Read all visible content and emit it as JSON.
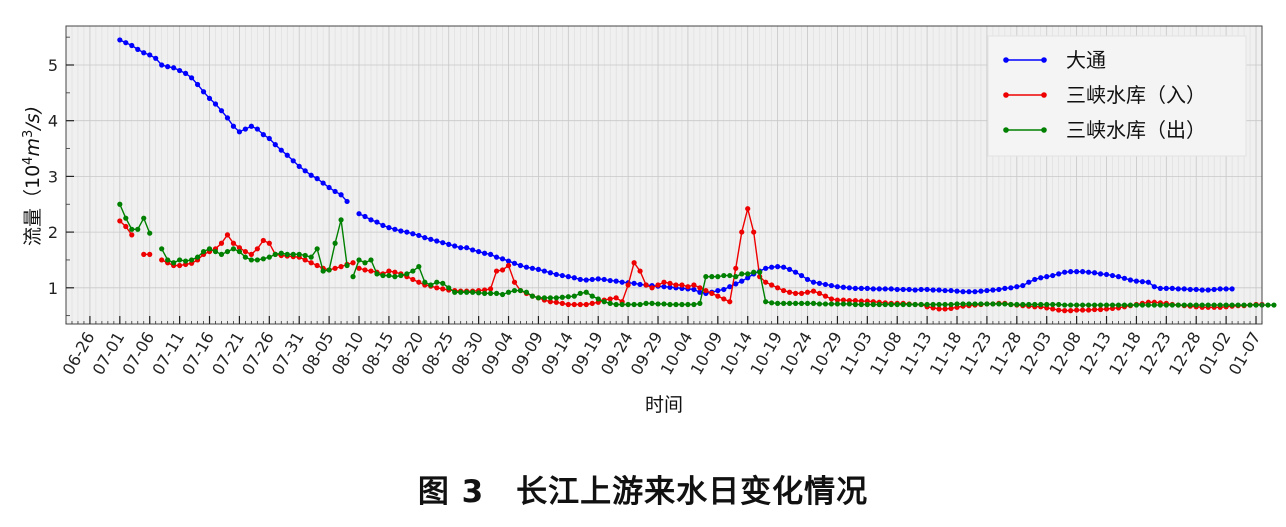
{
  "figure_caption": "图 3　长江上游来水日变化情况",
  "chart_data": {
    "type": "line",
    "title": "",
    "xlabel": "时间",
    "ylabel_text": "流量（10",
    "ylabel_unit": "m",
    "ylabel_rest": "/s)",
    "ylabel_sup": "4",
    "ylabel_sup2": "3",
    "ylim": [
      0.35,
      5.7
    ],
    "yticks": [
      "1",
      "2",
      "3",
      "4",
      "5"
    ],
    "ytick_values": [
      1,
      2,
      3,
      4,
      5
    ],
    "x_start": "2021-06-22",
    "x_end": "2022-01-08",
    "xtick_labels": [
      "06-26",
      "07-01",
      "07-06",
      "07-11",
      "07-16",
      "07-21",
      "07-26",
      "07-31",
      "08-05",
      "08-10",
      "08-15",
      "08-20",
      "08-25",
      "08-30",
      "09-04",
      "09-09",
      "09-14",
      "09-19",
      "09-24",
      "09-29",
      "10-04",
      "10-09",
      "10-14",
      "10-19",
      "10-24",
      "10-29",
      "11-03",
      "11-08",
      "11-13",
      "11-18",
      "11-23",
      "11-28",
      "12-03",
      "12-08",
      "12-13",
      "12-18",
      "12-23",
      "12-28",
      "01-02",
      "01-07"
    ],
    "grid": true,
    "legend_position": "top-right",
    "series": [
      {
        "name": "大通",
        "color": "#0000ff",
        "segments": [
          {
            "start": "2021-07-01",
            "values": [
              5.45,
              5.4,
              5.35,
              5.28,
              5.22,
              5.18,
              5.12,
              5.0,
              4.97,
              4.95,
              4.9,
              4.85,
              4.77,
              4.65,
              4.52,
              4.4,
              4.3,
              4.18,
              4.05,
              3.9,
              3.8,
              3.85,
              3.9,
              3.85,
              3.75,
              3.68,
              3.57,
              3.47,
              3.38,
              3.28,
              3.18,
              3.1,
              3.02,
              2.96,
              2.88,
              2.8,
              2.73,
              2.67,
              2.55
            ]
          },
          {
            "start": "2021-08-10",
            "values": [
              2.33,
              2.28,
              2.22,
              2.18,
              2.12,
              2.08,
              2.05,
              2.02,
              2.0,
              1.97,
              1.94,
              1.9,
              1.87,
              1.84,
              1.81,
              1.78,
              1.75,
              1.72,
              1.72,
              1.68,
              1.65,
              1.62,
              1.6,
              1.55,
              1.52,
              1.48,
              1.44,
              1.4,
              1.37,
              1.35,
              1.33,
              1.3,
              1.27,
              1.24,
              1.22,
              1.2,
              1.18,
              1.15,
              1.14,
              1.15,
              1.16,
              1.15,
              1.13,
              1.12,
              1.1,
              1.09,
              1.08,
              1.06,
              1.05,
              1.04,
              1.03,
              1.02,
              1.01,
              1.0,
              0.99,
              0.98,
              0.97,
              0.92,
              0.9,
              0.92,
              0.95,
              0.97,
              1.02,
              1.07,
              1.12,
              1.18,
              1.25,
              1.3,
              1.35,
              1.37,
              1.38,
              1.37,
              1.33,
              1.28,
              1.22,
              1.15,
              1.1,
              1.08,
              1.06,
              1.04,
              1.02,
              1.01,
              1.0,
              0.99,
              0.99,
              0.99,
              0.98,
              0.98,
              0.98,
              0.98,
              0.97,
              0.97,
              0.97,
              0.96,
              0.97,
              0.97,
              0.96,
              0.96,
              0.95,
              0.95,
              0.94,
              0.93,
              0.93,
              0.93,
              0.94,
              0.95,
              0.96,
              0.97,
              0.99,
              1.0,
              1.02,
              1.04,
              1.1,
              1.15,
              1.18,
              1.2,
              1.22,
              1.25,
              1.28,
              1.29,
              1.29,
              1.29,
              1.28,
              1.27,
              1.25,
              1.24,
              1.22,
              1.2,
              1.17,
              1.14,
              1.12,
              1.11,
              1.1,
              1.02,
              0.99,
              0.99,
              0.99,
              0.98,
              0.98,
              0.97,
              0.97,
              0.96,
              0.96,
              0.97,
              0.98,
              0.98,
              0.98
            ]
          }
        ]
      },
      {
        "name": "三峡水库（入）",
        "color": "#ee0000",
        "segments": [
          {
            "start": "2021-07-01",
            "values": [
              2.2,
              2.1,
              1.95
            ]
          },
          {
            "start": "2021-07-05",
            "values": [
              1.6,
              1.6
            ]
          },
          {
            "start": "2021-07-08",
            "values": [
              1.5,
              1.45,
              1.4,
              1.4,
              1.42,
              1.44,
              1.5,
              1.6,
              1.65,
              1.7,
              1.8,
              1.95,
              1.8,
              1.72,
              1.65,
              1.6,
              1.7,
              1.85,
              1.8,
              1.6,
              1.58,
              1.57,
              1.56,
              1.55,
              1.5,
              1.45,
              1.4,
              1.35,
              1.32,
              1.35,
              1.38,
              1.42,
              1.45
            ]
          },
          {
            "start": "2021-08-10",
            "values": [
              1.35,
              1.32,
              1.3,
              1.28,
              1.25,
              1.3,
              1.28,
              1.25,
              1.2,
              1.15,
              1.1,
              1.05,
              1.03,
              1.0,
              0.98,
              0.96,
              0.95,
              0.94,
              0.94,
              0.94,
              0.95,
              0.96,
              0.98,
              1.3,
              1.32,
              1.4,
              1.1,
              0.95,
              0.9,
              0.85,
              0.82,
              0.78,
              0.75,
              0.74,
              0.72,
              0.7,
              0.7,
              0.7,
              0.7,
              0.72,
              0.74,
              0.78,
              0.8,
              0.82,
              0.75,
              1.05,
              1.45,
              1.3,
              1.05,
              1.0,
              1.05,
              1.1,
              1.08,
              1.05,
              1.05,
              1.02,
              1.05,
              1.0,
              0.95,
              0.9,
              0.85,
              0.8,
              0.75,
              1.35,
              2.0,
              2.42,
              2.0,
              1.2,
              1.1,
              1.05,
              1.0,
              0.95,
              0.92,
              0.9,
              0.9,
              0.92,
              0.94,
              0.9,
              0.85,
              0.8,
              0.78,
              0.78,
              0.77,
              0.77,
              0.76,
              0.76,
              0.75,
              0.74,
              0.73,
              0.72,
              0.72,
              0.72,
              0.71,
              0.7,
              0.7,
              0.66,
              0.64,
              0.62,
              0.62,
              0.63,
              0.65,
              0.67,
              0.68,
              0.69,
              0.7,
              0.71,
              0.71,
              0.72,
              0.72,
              0.7,
              0.69,
              0.68,
              0.67,
              0.66,
              0.66,
              0.64,
              0.62,
              0.6,
              0.59,
              0.59,
              0.6,
              0.6,
              0.6,
              0.61,
              0.61,
              0.62,
              0.63,
              0.64,
              0.66,
              0.68,
              0.7,
              0.72,
              0.74,
              0.74,
              0.73,
              0.72,
              0.7,
              0.69,
              0.68,
              0.67,
              0.66,
              0.65,
              0.65,
              0.65,
              0.65,
              0.66,
              0.67,
              0.68,
              0.68,
              0.69,
              0.7,
              0.7
            ]
          }
        ]
      },
      {
        "name": "三峡水库（出）",
        "color": "#008000",
        "segments": [
          {
            "start": "2021-07-01",
            "values": [
              2.5,
              2.25,
              2.05,
              2.05,
              2.25,
              1.98
            ]
          },
          {
            "start": "2021-07-08",
            "values": [
              1.7,
              1.5,
              1.45,
              1.5,
              1.48,
              1.5,
              1.55,
              1.65,
              1.7,
              1.65,
              1.6,
              1.65,
              1.7,
              1.65,
              1.55,
              1.5,
              1.5,
              1.52,
              1.55,
              1.6,
              1.62,
              1.6,
              1.6,
              1.6,
              1.58,
              1.55,
              1.7,
              1.3,
              1.32,
              1.8,
              2.22,
              1.4
            ]
          },
          {
            "start": "2021-08-09",
            "values": [
              1.2,
              1.5,
              1.45,
              1.5,
              1.25,
              1.22,
              1.22,
              1.2,
              1.22,
              1.25,
              1.3,
              1.38,
              1.1,
              1.05,
              1.1,
              1.08,
              1.0,
              0.92,
              0.92,
              0.92,
              0.92,
              0.91,
              0.9,
              0.9,
              0.9,
              0.88,
              0.92,
              0.95,
              0.95,
              0.92,
              0.85,
              0.82,
              0.82,
              0.82,
              0.82,
              0.83,
              0.84,
              0.85,
              0.9,
              0.92,
              0.85,
              0.8,
              0.75,
              0.72,
              0.7,
              0.7,
              0.7,
              0.7,
              0.7,
              0.72,
              0.72,
              0.71,
              0.71,
              0.7,
              0.7,
              0.7,
              0.7,
              0.7,
              0.72,
              1.2,
              1.2,
              1.2,
              1.22,
              1.22,
              1.2,
              1.25,
              1.25,
              1.28,
              1.28,
              0.75,
              0.73,
              0.72,
              0.72,
              0.72,
              0.72,
              0.72,
              0.72,
              0.72,
              0.71,
              0.71,
              0.71,
              0.71,
              0.71,
              0.71,
              0.7,
              0.7,
              0.7,
              0.7,
              0.7,
              0.7,
              0.7,
              0.7,
              0.7,
              0.7,
              0.7,
              0.7,
              0.7,
              0.7,
              0.7,
              0.7,
              0.7,
              0.71,
              0.71,
              0.71,
              0.71,
              0.71,
              0.71,
              0.71,
              0.71,
              0.71,
              0.7,
              0.7,
              0.7,
              0.7,
              0.7,
              0.7,
              0.7,
              0.7,
              0.7,
              0.69,
              0.69,
              0.69,
              0.69,
              0.69,
              0.69,
              0.69,
              0.69,
              0.69,
              0.69,
              0.69,
              0.69,
              0.69,
              0.69,
              0.69,
              0.69,
              0.69,
              0.69,
              0.69,
              0.69,
              0.69,
              0.69,
              0.69,
              0.69,
              0.69,
              0.69,
              0.69,
              0.69,
              0.69,
              0.69,
              0.69,
              0.69,
              0.69,
              0.69,
              0.69,
              0.69
            ]
          }
        ]
      }
    ]
  }
}
